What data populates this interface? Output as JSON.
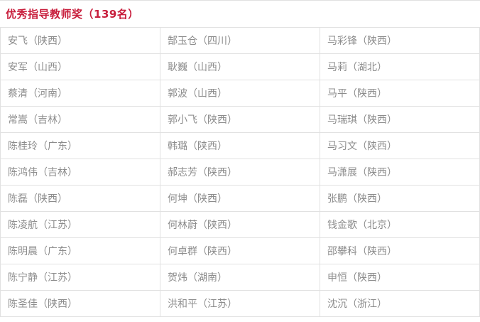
{
  "page": {
    "title": "优秀指导教师奖（139名）"
  },
  "colors": {
    "title_red": "#c81e3c",
    "cell_text": "#8c8c8c",
    "border": "#e1e1e1"
  },
  "table": {
    "columns": 3,
    "rows": [
      {
        "cells": [
          "安飞（陕西）",
          "郜玉仓（四川）",
          "马彩锋（陕西）"
        ]
      },
      {
        "cells": [
          "安军（山西）",
          "耿巍（山西）",
          "马莉（湖北）"
        ]
      },
      {
        "cells": [
          "蔡清（河南）",
          "郭波（山西）",
          "马平（陕西）"
        ]
      },
      {
        "cells": [
          "常嵩（吉林）",
          "郭小飞（陕西）",
          "马瑞琪（陕西）"
        ]
      },
      {
        "cells": [
          "陈桂玲（广东）",
          "韩璐（陕西）",
          "马习文（陕西）"
        ]
      },
      {
        "cells": [
          "陈鸿伟（吉林）",
          "郝志芳（陕西）",
          "马潇展（陕西）"
        ]
      },
      {
        "cells": [
          "陈磊（陕西）",
          "何坤（陕西）",
          "张鹏（陕西）"
        ]
      },
      {
        "cells": [
          "陈凌航（江苏）",
          "何林蔚（陕西）",
          "钱金歌（北京）"
        ]
      },
      {
        "cells": [
          "陈明晨（广东）",
          "何卓群（陕西）",
          "邵攀科（陕西）"
        ]
      },
      {
        "cells": [
          "陈宁静（江苏）",
          "贺炜（湖南）",
          "申恒（陕西）"
        ]
      },
      {
        "cells": [
          "陈圣佳（陕西）",
          "洪和平（江苏）",
          "沈沉（浙江）"
        ]
      }
    ]
  }
}
